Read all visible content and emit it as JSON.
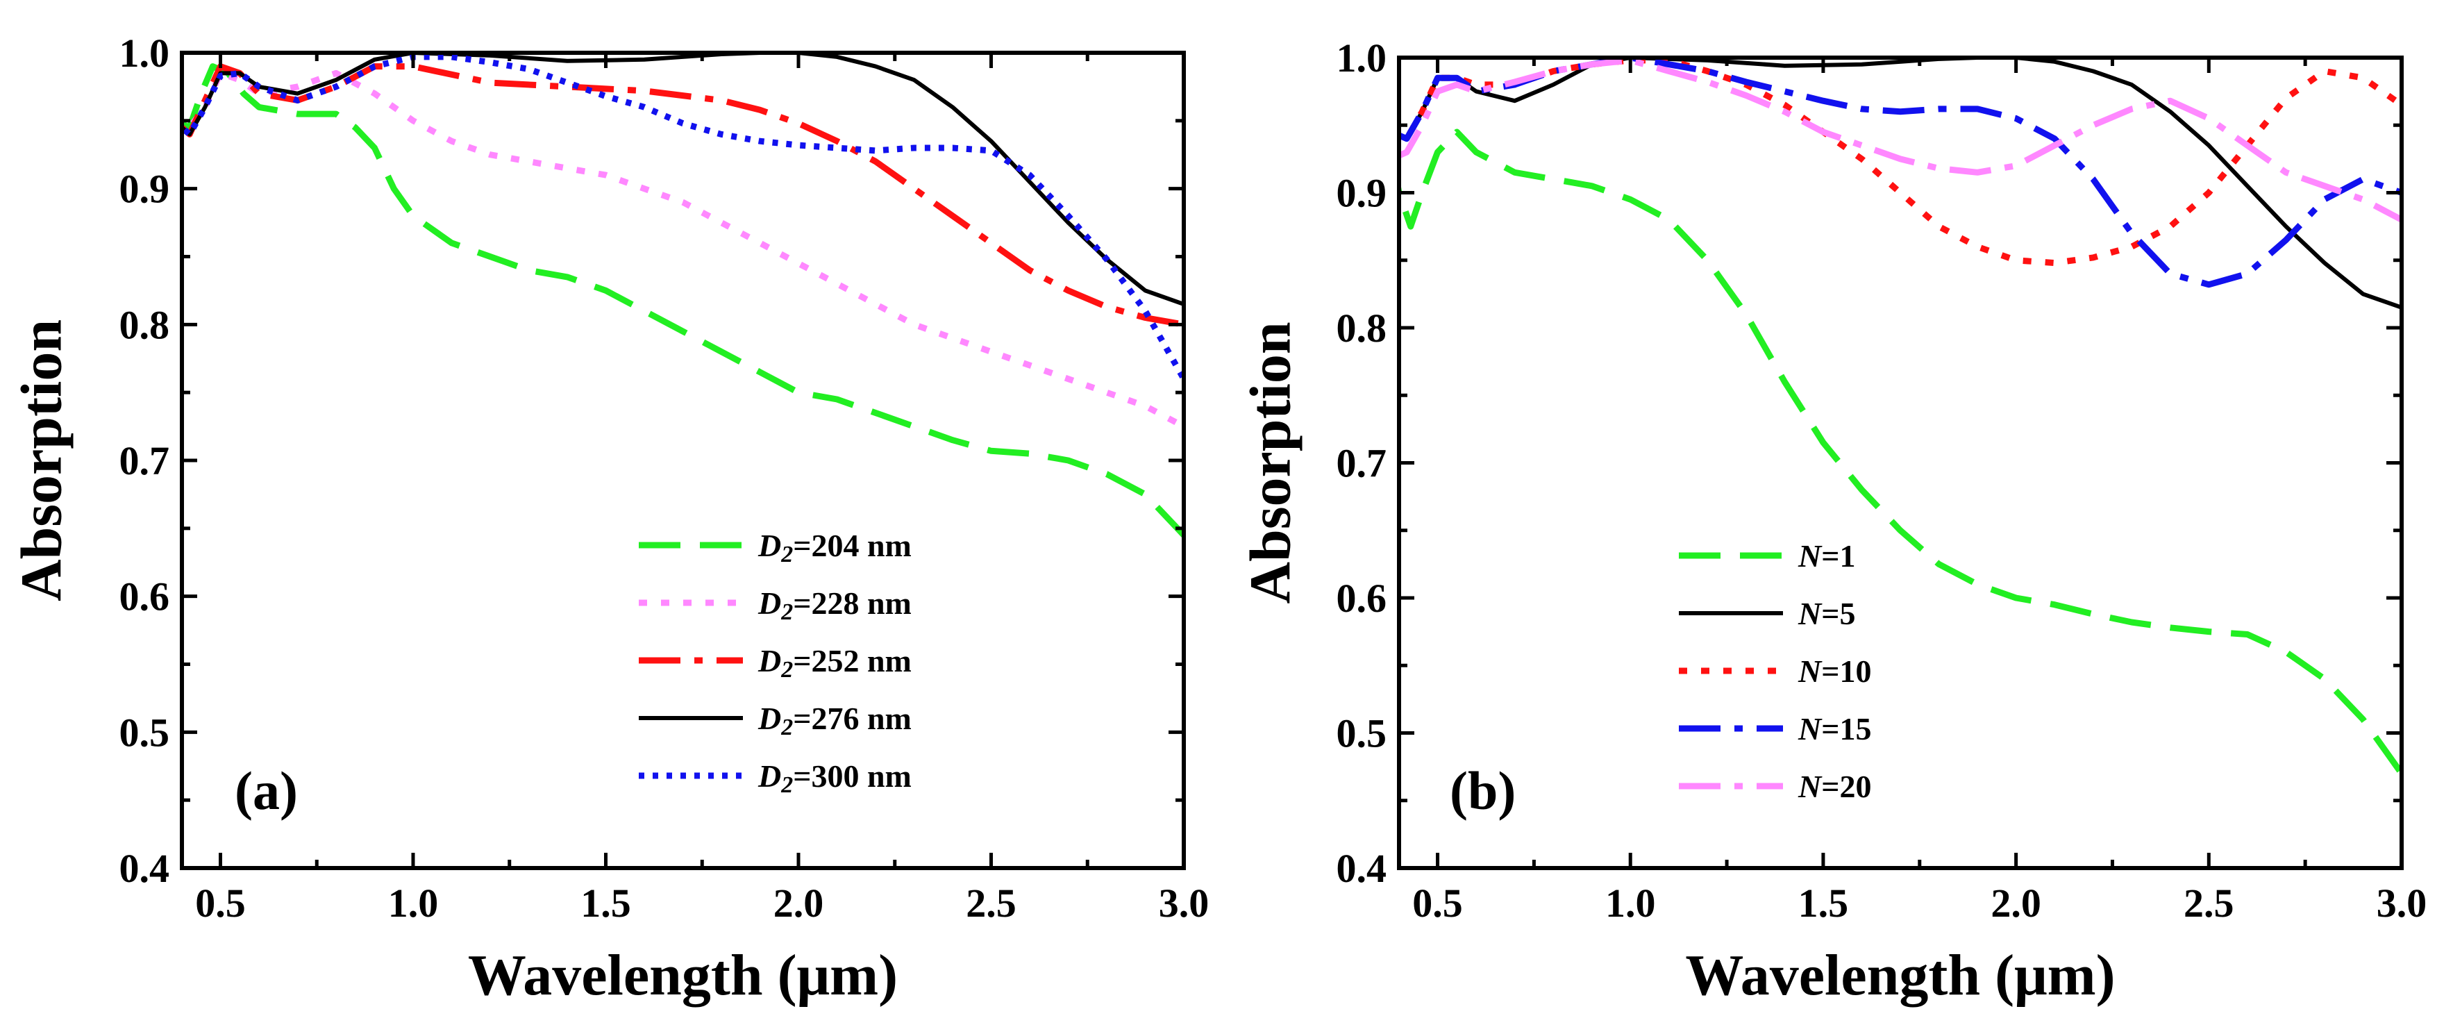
{
  "chart_data": [
    {
      "type": "line",
      "panel_label": "(a)",
      "xlabel": "Wavelength (μm)",
      "ylabel": "Absorption",
      "xlim": [
        0.4,
        3.0
      ],
      "ylim": [
        0.4,
        1.0
      ],
      "xticks": [
        "0.5",
        "1.0",
        "1.5",
        "2.0",
        "2.5",
        "3.0"
      ],
      "yticks": [
        "0.4",
        "0.5",
        "0.6",
        "0.7",
        "0.8",
        "0.9",
        "1.0"
      ],
      "legend_position": "lower-right",
      "series": [
        {
          "name": "D2=204 nm",
          "name_var": "D",
          "name_sub": "2",
          "name_rest": "=204 nm",
          "color": "#22ee22",
          "dash": "dash",
          "x": [
            0.38,
            0.42,
            0.45,
            0.48,
            0.52,
            0.56,
            0.6,
            0.7,
            0.8,
            0.85,
            0.9,
            0.95,
            1.0,
            1.1,
            1.2,
            1.3,
            1.4,
            1.5,
            1.6,
            1.7,
            1.8,
            1.9,
            2.0,
            2.1,
            2.2,
            2.3,
            2.4,
            2.5,
            2.6,
            2.7,
            2.8,
            2.9,
            3.0
          ],
          "y": [
            0.95,
            0.945,
            0.97,
            0.99,
            0.985,
            0.97,
            0.96,
            0.955,
            0.955,
            0.945,
            0.93,
            0.9,
            0.88,
            0.86,
            0.85,
            0.84,
            0.835,
            0.825,
            0.81,
            0.795,
            0.78,
            0.765,
            0.75,
            0.745,
            0.735,
            0.725,
            0.715,
            0.707,
            0.705,
            0.7,
            0.69,
            0.675,
            0.645
          ]
        },
        {
          "name": "D2=228 nm",
          "name_var": "D",
          "name_sub": "2",
          "name_rest": "=228 nm",
          "color": "#ff88ff",
          "dash": "dot",
          "x": [
            0.38,
            0.42,
            0.46,
            0.5,
            0.55,
            0.6,
            0.7,
            0.8,
            0.9,
            1.0,
            1.1,
            1.2,
            1.3,
            1.4,
            1.5,
            1.6,
            1.7,
            1.8,
            1.9,
            2.0,
            2.1,
            2.2,
            2.3,
            2.4,
            2.5,
            2.6,
            2.7,
            2.8,
            2.9,
            3.0
          ],
          "y": [
            0.95,
            0.945,
            0.96,
            0.985,
            0.98,
            0.97,
            0.975,
            0.985,
            0.97,
            0.95,
            0.935,
            0.925,
            0.92,
            0.915,
            0.91,
            0.9,
            0.89,
            0.875,
            0.86,
            0.845,
            0.83,
            0.815,
            0.8,
            0.79,
            0.78,
            0.77,
            0.76,
            0.75,
            0.74,
            0.725
          ]
        },
        {
          "name": "D2=252 nm",
          "name_var": "D",
          "name_sub": "2",
          "name_rest": "=252 nm",
          "color": "#ff1111",
          "dash": "dashdot",
          "x": [
            0.38,
            0.42,
            0.46,
            0.5,
            0.55,
            0.6,
            0.7,
            0.8,
            0.9,
            1.0,
            1.2,
            1.4,
            1.6,
            1.8,
            1.9,
            2.0,
            2.1,
            2.2,
            2.3,
            2.4,
            2.5,
            2.6,
            2.7,
            2.8,
            2.9,
            3.0
          ],
          "y": [
            0.95,
            0.94,
            0.965,
            0.99,
            0.985,
            0.97,
            0.965,
            0.975,
            0.99,
            0.99,
            0.978,
            0.975,
            0.972,
            0.965,
            0.958,
            0.948,
            0.935,
            0.92,
            0.9,
            0.88,
            0.86,
            0.84,
            0.825,
            0.813,
            0.805,
            0.8
          ]
        },
        {
          "name": "D2=276 nm",
          "name_var": "D",
          "name_sub": "2",
          "name_rest": "=276 nm",
          "color": "#000000",
          "dash": "solid",
          "x": [
            0.38,
            0.42,
            0.46,
            0.5,
            0.55,
            0.6,
            0.7,
            0.8,
            0.9,
            1.0,
            1.2,
            1.4,
            1.6,
            1.8,
            1.9,
            2.0,
            2.1,
            2.2,
            2.3,
            2.4,
            2.5,
            2.6,
            2.7,
            2.8,
            2.9,
            3.0
          ],
          "y": [
            0.95,
            0.94,
            0.96,
            0.985,
            0.985,
            0.975,
            0.97,
            0.98,
            0.995,
            1.0,
            0.998,
            0.994,
            0.995,
            0.999,
            1.0,
            1.0,
            0.997,
            0.99,
            0.98,
            0.96,
            0.935,
            0.905,
            0.875,
            0.848,
            0.825,
            0.815
          ]
        },
        {
          "name": "D2=300 nm",
          "name_var": "D",
          "name_sub": "2",
          "name_rest": "=300 nm",
          "color": "#1111ee",
          "dash": "dotfine",
          "x": [
            0.38,
            0.42,
            0.46,
            0.5,
            0.55,
            0.6,
            0.7,
            0.8,
            0.9,
            1.0,
            1.1,
            1.2,
            1.3,
            1.4,
            1.5,
            1.6,
            1.7,
            1.8,
            1.9,
            2.0,
            2.1,
            2.2,
            2.3,
            2.4,
            2.5,
            2.6,
            2.7,
            2.8,
            2.9,
            3.0
          ],
          "y": [
            0.95,
            0.94,
            0.96,
            0.983,
            0.985,
            0.975,
            0.965,
            0.975,
            0.99,
            0.997,
            0.997,
            0.993,
            0.988,
            0.978,
            0.968,
            0.96,
            0.948,
            0.94,
            0.935,
            0.932,
            0.93,
            0.928,
            0.93,
            0.93,
            0.928,
            0.91,
            0.88,
            0.848,
            0.81,
            0.76
          ]
        }
      ]
    },
    {
      "type": "line",
      "panel_label": "(b)",
      "xlabel": "Wavelength (μm)",
      "ylabel": "Absorption",
      "xlim": [
        0.4,
        3.0
      ],
      "ylim": [
        0.4,
        1.0
      ],
      "xticks": [
        "0.5",
        "1.0",
        "1.5",
        "2.0",
        "2.5",
        "3.0"
      ],
      "yticks": [
        "0.4",
        "0.5",
        "0.6",
        "0.7",
        "0.8",
        "0.9",
        "1.0"
      ],
      "legend_position": "lower-left",
      "series": [
        {
          "name": "N=1",
          "name_var": "N",
          "name_sub": "",
          "name_rest": "=1",
          "color": "#22ee22",
          "dash": "dash",
          "x": [
            0.38,
            0.4,
            0.43,
            0.46,
            0.5,
            0.55,
            0.6,
            0.7,
            0.8,
            0.9,
            1.0,
            1.1,
            1.2,
            1.3,
            1.4,
            1.5,
            1.6,
            1.7,
            1.8,
            1.9,
            2.0,
            2.1,
            2.2,
            2.3,
            2.4,
            2.5,
            2.6,
            2.7,
            2.8,
            2.9,
            3.0
          ],
          "y": [
            0.93,
            0.9,
            0.875,
            0.9,
            0.93,
            0.945,
            0.93,
            0.915,
            0.91,
            0.905,
            0.895,
            0.88,
            0.85,
            0.81,
            0.76,
            0.715,
            0.68,
            0.65,
            0.625,
            0.61,
            0.6,
            0.595,
            0.588,
            0.582,
            0.578,
            0.575,
            0.573,
            0.56,
            0.54,
            0.51,
            0.47
          ]
        },
        {
          "name": "N=5",
          "name_var": "N",
          "name_sub": "",
          "name_rest": "=5",
          "color": "#000000",
          "dash": "solid",
          "x": [
            0.38,
            0.42,
            0.46,
            0.5,
            0.55,
            0.6,
            0.7,
            0.8,
            0.9,
            1.0,
            1.2,
            1.4,
            1.6,
            1.8,
            1.9,
            2.0,
            2.1,
            2.2,
            2.3,
            2.4,
            2.5,
            2.6,
            2.7,
            2.8,
            2.9,
            3.0
          ],
          "y": [
            0.945,
            0.94,
            0.96,
            0.985,
            0.985,
            0.975,
            0.968,
            0.98,
            0.995,
            1.0,
            0.998,
            0.994,
            0.995,
            0.999,
            1.0,
            1.0,
            0.997,
            0.99,
            0.98,
            0.96,
            0.935,
            0.905,
            0.875,
            0.848,
            0.825,
            0.815
          ]
        },
        {
          "name": "N=10",
          "name_var": "N",
          "name_sub": "",
          "name_rest": "=10",
          "color": "#ff1111",
          "dash": "dot",
          "x": [
            0.38,
            0.42,
            0.46,
            0.5,
            0.55,
            0.6,
            0.7,
            0.8,
            0.9,
            1.0,
            1.1,
            1.2,
            1.3,
            1.4,
            1.5,
            1.6,
            1.7,
            1.8,
            1.9,
            2.0,
            2.1,
            2.2,
            2.3,
            2.4,
            2.5,
            2.6,
            2.7,
            2.8,
            2.9,
            3.0
          ],
          "y": [
            0.945,
            0.94,
            0.96,
            0.985,
            0.985,
            0.98,
            0.98,
            0.99,
            0.995,
            0.998,
            0.998,
            0.99,
            0.98,
            0.965,
            0.945,
            0.925,
            0.9,
            0.875,
            0.86,
            0.85,
            0.848,
            0.852,
            0.86,
            0.875,
            0.9,
            0.935,
            0.97,
            0.99,
            0.985,
            0.965
          ]
        },
        {
          "name": "N=15",
          "name_var": "N",
          "name_sub": "",
          "name_rest": "=15",
          "color": "#1111ee",
          "dash": "dashdot",
          "x": [
            0.38,
            0.42,
            0.46,
            0.5,
            0.55,
            0.6,
            0.7,
            0.8,
            0.9,
            1.0,
            1.1,
            1.2,
            1.3,
            1.4,
            1.5,
            1.6,
            1.7,
            1.8,
            1.9,
            2.0,
            2.1,
            2.2,
            2.3,
            2.4,
            2.5,
            2.6,
            2.7,
            2.8,
            2.9,
            3.0
          ],
          "y": [
            0.945,
            0.94,
            0.96,
            0.985,
            0.985,
            0.975,
            0.98,
            0.99,
            0.995,
            1.0,
            0.995,
            0.99,
            0.982,
            0.975,
            0.968,
            0.962,
            0.96,
            0.962,
            0.962,
            0.955,
            0.94,
            0.91,
            0.87,
            0.84,
            0.832,
            0.84,
            0.865,
            0.895,
            0.91,
            0.9
          ]
        },
        {
          "name": "N=20",
          "name_var": "N",
          "name_sub": "",
          "name_rest": "=20",
          "color": "#ff88ff",
          "dash": "dashdot",
          "x": [
            0.38,
            0.42,
            0.46,
            0.5,
            0.55,
            0.6,
            0.7,
            0.8,
            0.9,
            1.0,
            1.1,
            1.2,
            1.3,
            1.4,
            1.5,
            1.6,
            1.7,
            1.8,
            1.9,
            2.0,
            2.1,
            2.2,
            2.3,
            2.4,
            2.5,
            2.6,
            2.7,
            2.8,
            2.9,
            3.0
          ],
          "y": [
            0.925,
            0.93,
            0.95,
            0.975,
            0.98,
            0.975,
            0.982,
            0.99,
            0.995,
            0.998,
            0.99,
            0.982,
            0.972,
            0.96,
            0.945,
            0.935,
            0.925,
            0.918,
            0.915,
            0.92,
            0.935,
            0.95,
            0.962,
            0.968,
            0.955,
            0.935,
            0.915,
            0.905,
            0.895,
            0.88
          ]
        }
      ]
    }
  ]
}
